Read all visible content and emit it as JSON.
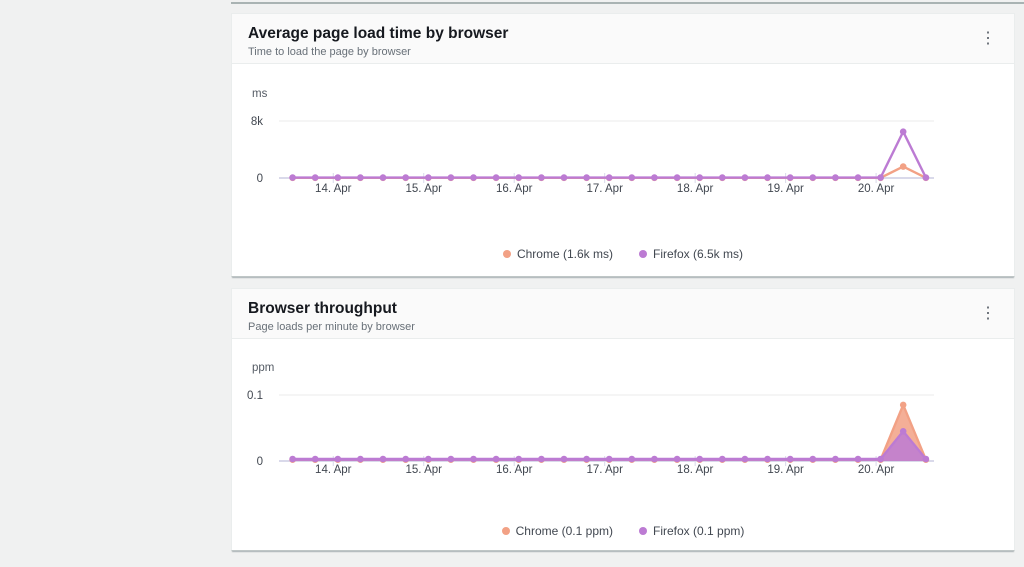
{
  "page": {
    "background": "#f0f1f1"
  },
  "cards": [
    {
      "title": "Average page load time by browser",
      "subtitle": "Time to load the page by browser",
      "menu_icon": "vertical-ellipsis",
      "menu_glyph": "⋮",
      "legend": [
        {
          "name": "Chrome",
          "label": "Chrome (1.6k ms)",
          "color": "#f2a185"
        },
        {
          "name": "Firefox",
          "label": "Firefox (6.5k ms)",
          "color": "#bc7bd3"
        }
      ]
    },
    {
      "title": "Browser throughput",
      "subtitle": "Page loads per minute by browser",
      "menu_icon": "vertical-ellipsis",
      "menu_glyph": "⋮",
      "legend": [
        {
          "name": "Chrome",
          "label": "Chrome (0.1 ppm)",
          "color": "#f2a185"
        },
        {
          "name": "Firefox",
          "label": "Firefox (0.1 ppm)",
          "color": "#bc7bd3"
        }
      ]
    }
  ],
  "chart_data": [
    {
      "type": "line",
      "title": "Average page load time by browser",
      "ylabel": "ms",
      "y_ticks": [
        {
          "value": 0,
          "label": "0"
        },
        {
          "value": 8000,
          "label": "8k"
        }
      ],
      "ylim": [
        0,
        9600
      ],
      "grid": true,
      "legend_position": "bottom",
      "x_unit": "day of April",
      "xlim": [
        13.4,
        20.64
      ],
      "x_start": 13.55,
      "x_step": 0.25,
      "x_ticks": [
        {
          "value": 14,
          "label": "14. Apr"
        },
        {
          "value": 15,
          "label": "15. Apr"
        },
        {
          "value": 16,
          "label": "16. Apr"
        },
        {
          "value": 17,
          "label": "17. Apr"
        },
        {
          "value": 18,
          "label": "18. Apr"
        },
        {
          "value": 19,
          "label": "19. Apr"
        },
        {
          "value": 20,
          "label": "20. Apr"
        }
      ],
      "series": [
        {
          "name": "Chrome",
          "color": "#f2a185",
          "values": [
            30,
            30,
            30,
            30,
            30,
            30,
            30,
            30,
            30,
            30,
            30,
            30,
            30,
            30,
            30,
            30,
            30,
            30,
            30,
            30,
            30,
            30,
            30,
            30,
            30,
            30,
            30,
            1600,
            30
          ]
        },
        {
          "name": "Firefox",
          "color": "#bc7bd3",
          "values": [
            50,
            50,
            50,
            50,
            50,
            50,
            50,
            50,
            50,
            50,
            50,
            50,
            50,
            50,
            50,
            50,
            50,
            50,
            50,
            50,
            50,
            50,
            50,
            50,
            50,
            50,
            50,
            6500,
            50
          ]
        }
      ]
    },
    {
      "type": "area",
      "title": "Browser throughput",
      "ylabel": "ppm",
      "y_ticks": [
        {
          "value": 0,
          "label": "0"
        },
        {
          "value": 0.1,
          "label": "0.1"
        }
      ],
      "ylim": [
        0,
        0.12
      ],
      "grid": true,
      "legend_position": "bottom",
      "x_unit": "day of April",
      "xlim": [
        13.4,
        20.64
      ],
      "x_start": 13.55,
      "x_step": 0.25,
      "x_ticks": [
        {
          "value": 14,
          "label": "14. Apr"
        },
        {
          "value": 15,
          "label": "15. Apr"
        },
        {
          "value": 16,
          "label": "16. Apr"
        },
        {
          "value": 17,
          "label": "17. Apr"
        },
        {
          "value": 18,
          "label": "18. Apr"
        },
        {
          "value": 19,
          "label": "19. Apr"
        },
        {
          "value": 20,
          "label": "20. Apr"
        }
      ],
      "series": [
        {
          "name": "Chrome",
          "color": "#f2a185",
          "values": [
            0.002,
            0.002,
            0.002,
            0.002,
            0.002,
            0.002,
            0.002,
            0.002,
            0.002,
            0.002,
            0.002,
            0.002,
            0.002,
            0.002,
            0.002,
            0.002,
            0.002,
            0.002,
            0.002,
            0.002,
            0.002,
            0.002,
            0.002,
            0.002,
            0.002,
            0.002,
            0.002,
            0.085,
            0.002
          ]
        },
        {
          "name": "Firefox",
          "color": "#bc7bd3",
          "values": [
            0.003,
            0.003,
            0.003,
            0.003,
            0.003,
            0.003,
            0.003,
            0.003,
            0.003,
            0.003,
            0.003,
            0.003,
            0.003,
            0.003,
            0.003,
            0.003,
            0.003,
            0.003,
            0.003,
            0.003,
            0.003,
            0.003,
            0.003,
            0.003,
            0.003,
            0.003,
            0.003,
            0.045,
            0.003
          ]
        }
      ]
    }
  ],
  "colors": {
    "chrome_series": "#f2a185",
    "firefox_series": "#bc7bd3",
    "zero_axis_line": "#d9d9ea",
    "gridline": "#ebebeb",
    "tick_text": "#414750",
    "unit_text": "#545b64"
  }
}
